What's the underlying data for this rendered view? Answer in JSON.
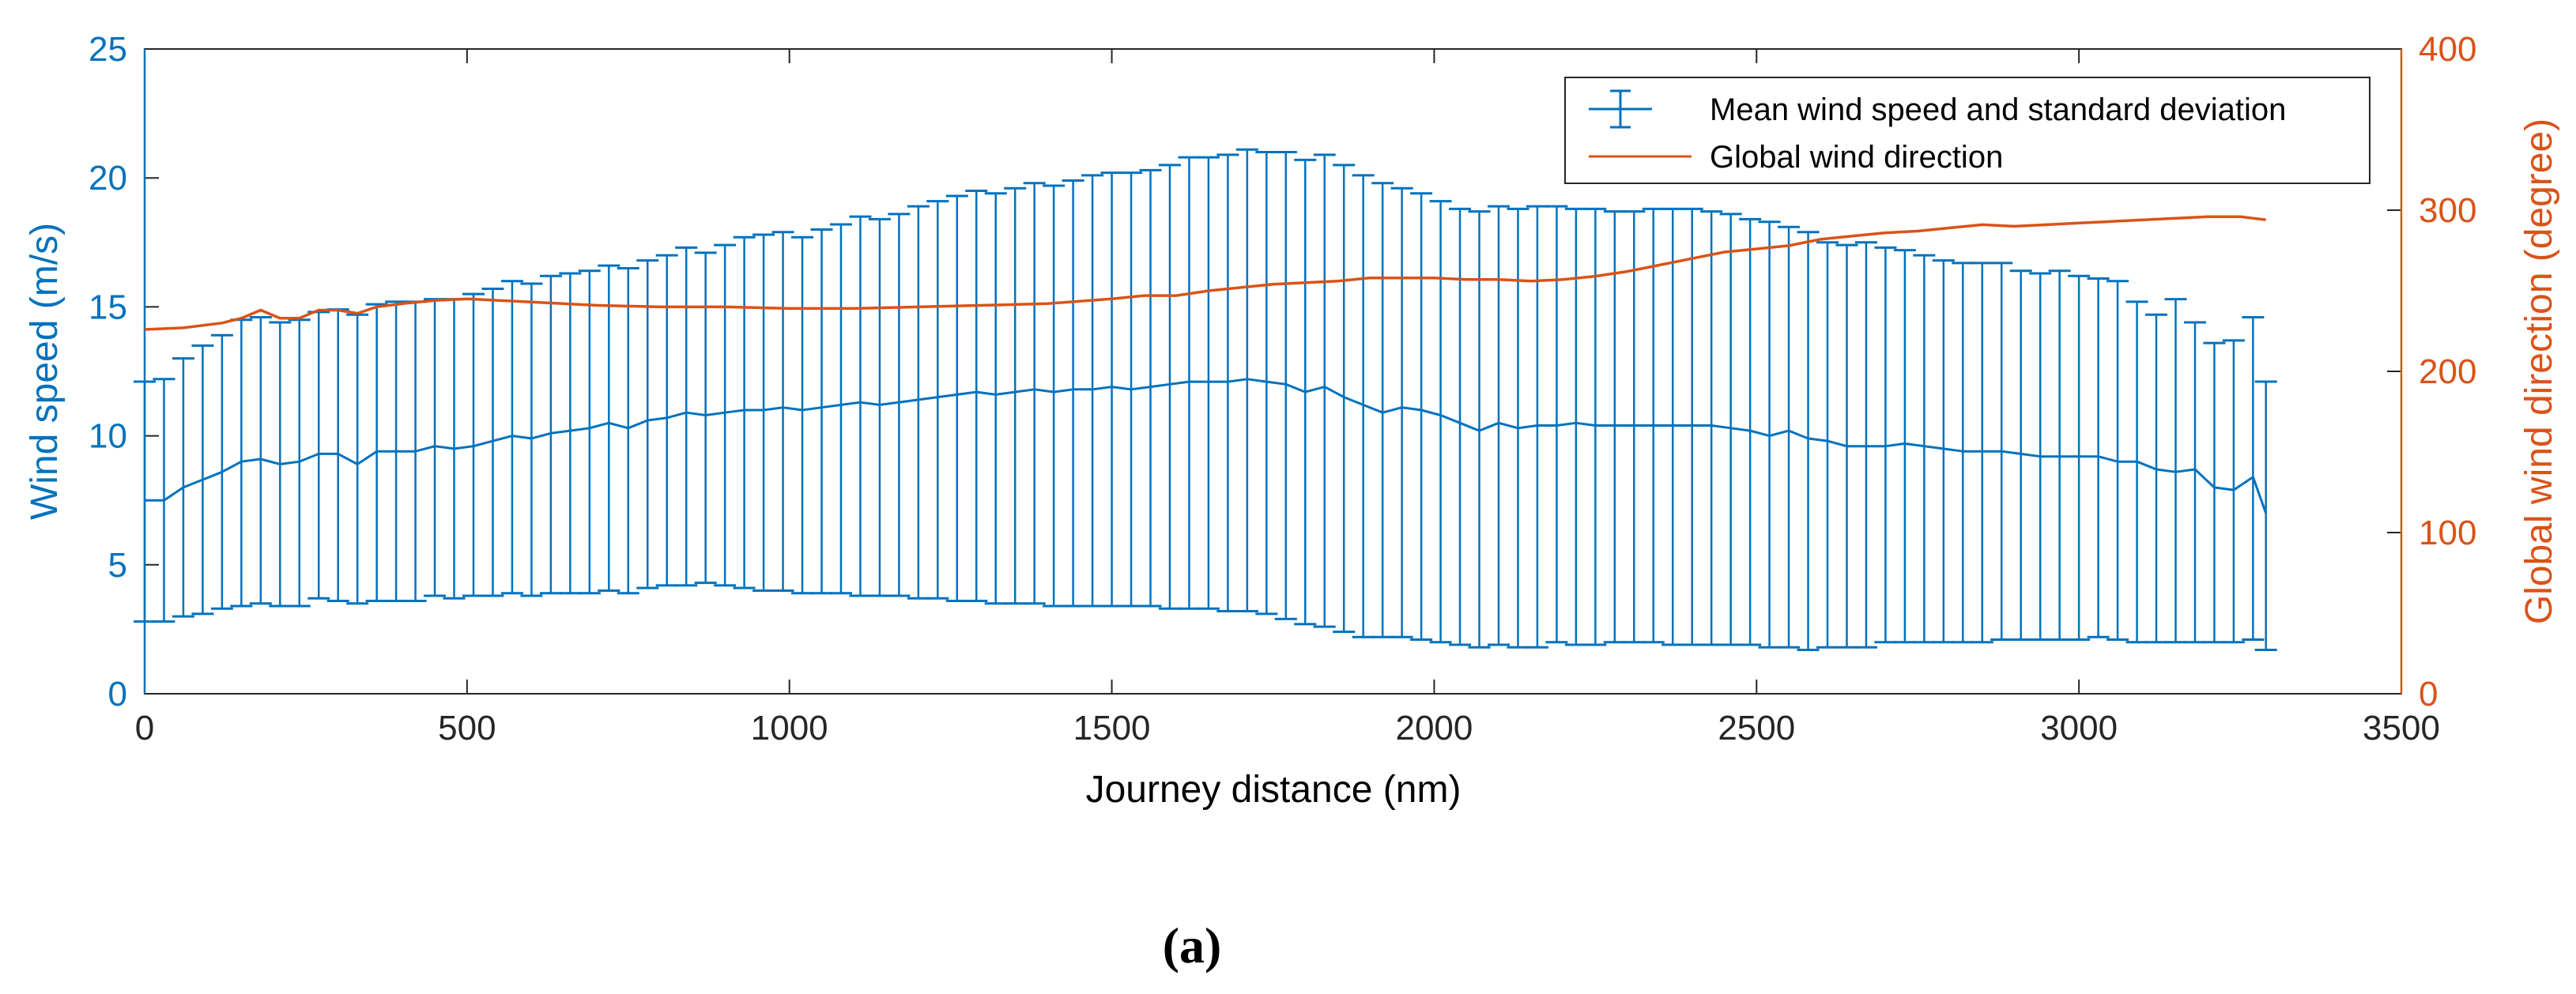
{
  "chart_data": {
    "type": "line",
    "caption": "(a)",
    "xlabel": "Journey distance (nm)",
    "ylabel_left": "Wind speed (m/s)",
    "ylabel_right": "Global wind direction (degree)",
    "xlim": [
      0,
      3500
    ],
    "ylim_left": [
      0,
      25
    ],
    "ylim_right": [
      0,
      400
    ],
    "x_ticks": [
      "0",
      "500",
      "1000",
      "1500",
      "2000",
      "2500",
      "3000",
      "3500"
    ],
    "y_ticks_left": [
      "0",
      "5",
      "10",
      "15",
      "20",
      "25"
    ],
    "y_ticks_right": [
      "0",
      "100",
      "200",
      "300",
      "400"
    ],
    "legend": {
      "location": "top-right",
      "entries": [
        "Mean wind speed and standard deviation",
        "Global wind direction"
      ]
    },
    "colors": {
      "speed": "#0072bd",
      "direction": "#d95319",
      "axes": "#262626"
    },
    "series": [
      {
        "name": "Mean wind speed and standard deviation",
        "axis": "left",
        "x": [
          0,
          30,
          60,
          90,
          120,
          150,
          180,
          210,
          240,
          270,
          300,
          330,
          360,
          390,
          420,
          450,
          480,
          510,
          540,
          570,
          600,
          630,
          660,
          690,
          720,
          750,
          780,
          810,
          840,
          870,
          900,
          930,
          960,
          990,
          1020,
          1050,
          1080,
          1110,
          1140,
          1170,
          1200,
          1230,
          1260,
          1290,
          1320,
          1350,
          1380,
          1410,
          1440,
          1470,
          1500,
          1530,
          1560,
          1590,
          1620,
          1650,
          1680,
          1710,
          1740,
          1770,
          1800,
          1830,
          1860,
          1890,
          1920,
          1950,
          1980,
          2010,
          2040,
          2070,
          2100,
          2130,
          2160,
          2190,
          2220,
          2250,
          2280,
          2310,
          2340,
          2370,
          2400,
          2430,
          2460,
          2490,
          2520,
          2550,
          2580,
          2610,
          2640,
          2670,
          2700,
          2730,
          2760,
          2790,
          2820,
          2850,
          2880,
          2910,
          2940,
          2970,
          3000,
          3030,
          3060,
          3090,
          3120,
          3150,
          3180,
          3210,
          3240,
          3270,
          3290
        ],
        "mean": [
          7.5,
          7.5,
          8.0,
          8.3,
          8.6,
          9.0,
          9.1,
          8.9,
          9.0,
          9.3,
          9.3,
          8.9,
          9.4,
          9.4,
          9.4,
          9.6,
          9.5,
          9.6,
          9.8,
          10.0,
          9.9,
          10.1,
          10.2,
          10.3,
          10.5,
          10.3,
          10.6,
          10.7,
          10.9,
          10.8,
          10.9,
          11.0,
          11.0,
          11.1,
          11.0,
          11.1,
          11.2,
          11.3,
          11.2,
          11.3,
          11.4,
          11.5,
          11.6,
          11.7,
          11.6,
          11.7,
          11.8,
          11.7,
          11.8,
          11.8,
          11.9,
          11.8,
          11.9,
          12.0,
          12.1,
          12.1,
          12.1,
          12.2,
          12.1,
          12.0,
          11.7,
          11.9,
          11.5,
          11.2,
          10.9,
          11.1,
          11.0,
          10.8,
          10.5,
          10.2,
          10.5,
          10.3,
          10.4,
          10.4,
          10.5,
          10.4,
          10.4,
          10.4,
          10.4,
          10.4,
          10.4,
          10.4,
          10.3,
          10.2,
          10.0,
          10.2,
          9.9,
          9.8,
          9.6,
          9.6,
          9.6,
          9.7,
          9.6,
          9.5,
          9.4,
          9.4,
          9.4,
          9.3,
          9.2,
          9.2,
          9.2,
          9.2,
          9.0,
          9.0,
          8.7,
          8.6,
          8.7,
          8.0,
          7.9,
          8.4,
          7.0
        ],
        "upper": [
          12.1,
          12.2,
          13.0,
          13.5,
          13.9,
          14.5,
          14.6,
          14.4,
          14.5,
          14.8,
          14.9,
          14.7,
          15.1,
          15.2,
          15.2,
          15.3,
          15.3,
          15.5,
          15.7,
          16.0,
          15.9,
          16.2,
          16.3,
          16.4,
          16.6,
          16.5,
          16.8,
          17.0,
          17.3,
          17.1,
          17.4,
          17.7,
          17.8,
          17.9,
          17.7,
          18.0,
          18.2,
          18.5,
          18.4,
          18.6,
          18.9,
          19.1,
          19.3,
          19.5,
          19.4,
          19.6,
          19.8,
          19.7,
          19.9,
          20.1,
          20.2,
          20.2,
          20.3,
          20.5,
          20.8,
          20.8,
          20.9,
          21.1,
          21.0,
          21.0,
          20.7,
          20.9,
          20.5,
          20.1,
          19.8,
          19.6,
          19.4,
          19.1,
          18.8,
          18.7,
          18.9,
          18.8,
          18.9,
          18.9,
          18.8,
          18.8,
          18.7,
          18.7,
          18.8,
          18.8,
          18.8,
          18.7,
          18.6,
          18.4,
          18.3,
          18.1,
          17.9,
          17.5,
          17.4,
          17.5,
          17.3,
          17.2,
          17.0,
          16.8,
          16.7,
          16.7,
          16.7,
          16.4,
          16.3,
          16.4,
          16.2,
          16.1,
          16.0,
          15.2,
          14.7,
          15.3,
          14.4,
          13.6,
          13.7,
          14.6,
          12.1
        ],
        "lower": [
          2.8,
          2.8,
          3.0,
          3.1,
          3.3,
          3.4,
          3.5,
          3.4,
          3.4,
          3.7,
          3.6,
          3.5,
          3.6,
          3.6,
          3.6,
          3.8,
          3.7,
          3.8,
          3.8,
          3.9,
          3.8,
          3.9,
          3.9,
          3.9,
          4.0,
          3.9,
          4.1,
          4.2,
          4.2,
          4.3,
          4.2,
          4.1,
          4.0,
          4.0,
          3.9,
          3.9,
          3.9,
          3.8,
          3.8,
          3.8,
          3.7,
          3.7,
          3.6,
          3.6,
          3.5,
          3.5,
          3.5,
          3.4,
          3.4,
          3.4,
          3.4,
          3.4,
          3.4,
          3.3,
          3.3,
          3.3,
          3.2,
          3.2,
          3.1,
          2.9,
          2.7,
          2.6,
          2.4,
          2.2,
          2.2,
          2.2,
          2.1,
          2.0,
          1.9,
          1.8,
          1.9,
          1.8,
          1.8,
          2.0,
          1.9,
          1.9,
          2.0,
          2.0,
          2.0,
          1.9,
          1.9,
          1.9,
          1.9,
          1.9,
          1.8,
          1.8,
          1.7,
          1.8,
          1.8,
          1.8,
          2.0,
          2.0,
          2.0,
          2.0,
          2.0,
          2.0,
          2.1,
          2.1,
          2.1,
          2.1,
          2.1,
          2.2,
          2.1,
          2.0,
          2.0,
          2.0,
          2.0,
          2.0,
          2.0,
          2.1,
          1.7
        ]
      },
      {
        "name": "Global wind direction",
        "axis": "right",
        "x": [
          0,
          60,
          120,
          150,
          180,
          210,
          240,
          270,
          300,
          330,
          360,
          400,
          450,
          500,
          600,
          700,
          800,
          900,
          1000,
          1100,
          1200,
          1300,
          1400,
          1500,
          1550,
          1600,
          1650,
          1700,
          1750,
          1800,
          1850,
          1900,
          1950,
          2000,
          2050,
          2100,
          2150,
          2200,
          2250,
          2300,
          2350,
          2400,
          2450,
          2500,
          2550,
          2600,
          2650,
          2700,
          2750,
          2800,
          2850,
          2900,
          2950,
          3000,
          3050,
          3100,
          3150,
          3200,
          3250,
          3290
        ],
        "values": [
          226,
          227,
          230,
          233,
          238,
          233,
          233,
          238,
          238,
          236,
          240,
          242,
          244,
          245,
          243,
          241,
          240,
          240,
          239,
          239,
          240,
          241,
          242,
          245,
          247,
          247,
          250,
          252,
          254,
          255,
          256,
          258,
          258,
          258,
          257,
          257,
          256,
          257,
          259,
          262,
          266,
          270,
          274,
          276,
          278,
          282,
          284,
          286,
          287,
          289,
          291,
          290,
          291,
          292,
          293,
          294,
          295,
          296,
          296,
          294
        ]
      }
    ]
  }
}
